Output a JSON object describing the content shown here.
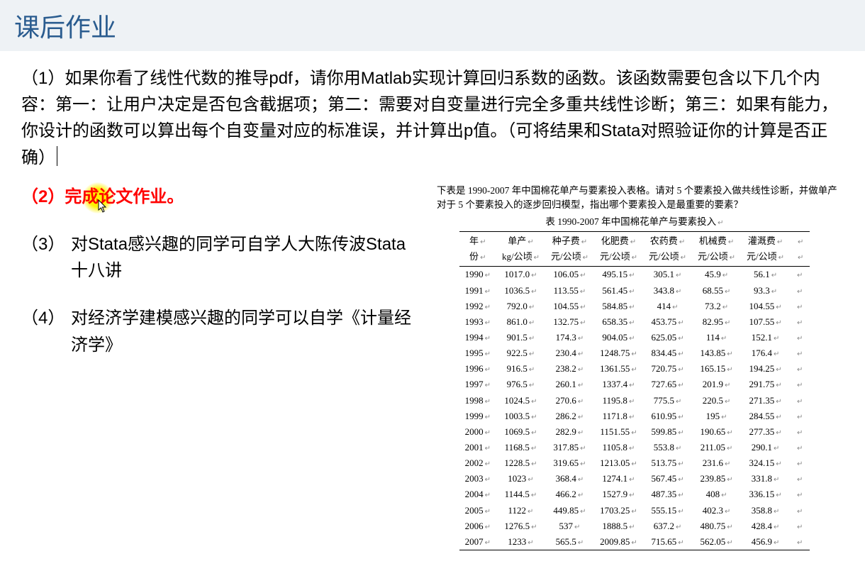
{
  "title": "课后作业",
  "q1": "（1）如果你看了线性代数的推导pdf，请你用Matlab实现计算回归系数的函数。该函数需要包含以下几个内容：第一：让用户决定是否包含截据项；第二：需要对自变量进行完全多重共线性诊断；第三：如果有能力，你设计的函数可以算出每个自变量对应的标准误，并计算出p值。（可将结果和Stata对照验证你的计算是否正确）",
  "q2": "（2）完成论文作业。",
  "q3_num": "（3）",
  "q3_body": "对Stata感兴趣的同学可自学人大陈传波Stata十八讲",
  "q4_num": "（4）",
  "q4_body": "对经济学建模感兴趣的同学可以自学《计量经济学》",
  "table_note": "下表是 1990-2007 年中国棉花单产与要素投入表格。请对 5 个要素投入做共线性诊断，并做单产对于 5 个要素投入的逐步回归模型，指出哪个要素投入是最重要的要素？",
  "table_caption": "表  1990-2007 年中国棉花单产与要素投入",
  "headers_row1": [
    "年",
    "单产",
    "种子费",
    "化肥费",
    "农药费",
    "机械费",
    "灌溉费"
  ],
  "headers_row2": [
    "份",
    "kg/公顷",
    "元/公顷",
    "元/公顷",
    "元/公顷",
    "元/公顷",
    "元/公顷"
  ],
  "rows": [
    [
      "1990",
      "1017.0",
      "106.05",
      "495.15",
      "305.1",
      "45.9",
      "56.1"
    ],
    [
      "1991",
      "1036.5",
      "113.55",
      "561.45",
      "343.8",
      "68.55",
      "93.3"
    ],
    [
      "1992",
      "792.0",
      "104.55",
      "584.85",
      "414",
      "73.2",
      "104.55"
    ],
    [
      "1993",
      "861.0",
      "132.75",
      "658.35",
      "453.75",
      "82.95",
      "107.55"
    ],
    [
      "1994",
      "901.5",
      "174.3",
      "904.05",
      "625.05",
      "114",
      "152.1"
    ],
    [
      "1995",
      "922.5",
      "230.4",
      "1248.75",
      "834.45",
      "143.85",
      "176.4"
    ],
    [
      "1996",
      "916.5",
      "238.2",
      "1361.55",
      "720.75",
      "165.15",
      "194.25"
    ],
    [
      "1997",
      "976.5",
      "260.1",
      "1337.4",
      "727.65",
      "201.9",
      "291.75"
    ],
    [
      "1998",
      "1024.5",
      "270.6",
      "1195.8",
      "775.5",
      "220.5",
      "271.35"
    ],
    [
      "1999",
      "1003.5",
      "286.2",
      "1171.8",
      "610.95",
      "195",
      "284.55"
    ],
    [
      "2000",
      "1069.5",
      "282.9",
      "1151.55",
      "599.85",
      "190.65",
      "277.35"
    ],
    [
      "2001",
      "1168.5",
      "317.85",
      "1105.8",
      "553.8",
      "211.05",
      "290.1"
    ],
    [
      "2002",
      "1228.5",
      "319.65",
      "1213.05",
      "513.75",
      "231.6",
      "324.15"
    ],
    [
      "2003",
      "1023",
      "368.4",
      "1274.1",
      "567.45",
      "239.85",
      "331.8"
    ],
    [
      "2004",
      "1144.5",
      "466.2",
      "1527.9",
      "487.35",
      "408",
      "336.15"
    ],
    [
      "2005",
      "1122",
      "449.85",
      "1703.25",
      "555.15",
      "402.3",
      "358.8"
    ],
    [
      "2006",
      "1276.5",
      "537",
      "1888.5",
      "637.2",
      "480.75",
      "428.4"
    ],
    [
      "2007",
      "1233",
      "565.5",
      "2009.85",
      "715.65",
      "562.05",
      "456.9"
    ]
  ]
}
